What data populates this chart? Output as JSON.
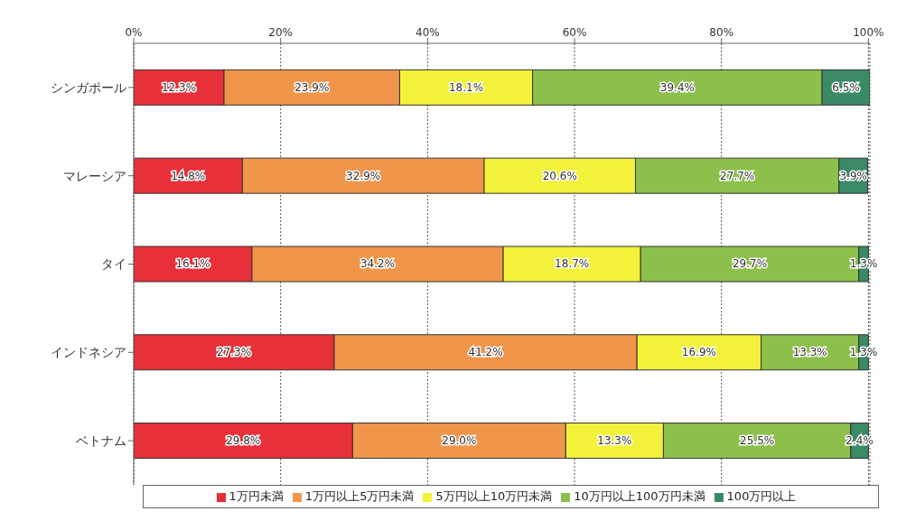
{
  "chart_data": {
    "type": "bar",
    "orientation": "horizontal",
    "stacked": true,
    "categories": [
      "シンガポール",
      "マレーシア",
      "タイ",
      "インドネシア",
      "ベトナム"
    ],
    "series": [
      {
        "name": "1万円未満",
        "color": "#e8303a",
        "values": [
          12.3,
          14.8,
          16.1,
          27.3,
          29.8
        ],
        "value_labels": [
          "12.3%",
          "14.8%",
          "16.1%",
          "27.3%",
          "29.8%"
        ]
      },
      {
        "name": "1万円以上5万円未満",
        "color": "#f0964a",
        "values": [
          23.9,
          32.9,
          34.2,
          41.2,
          29.0
        ],
        "value_labels": [
          "23.9%",
          "32.9%",
          "34.2%",
          "41.2%",
          "29.0%"
        ]
      },
      {
        "name": "5万円以上10万円未満",
        "color": "#f2f23a",
        "values": [
          18.1,
          20.6,
          18.7,
          16.9,
          13.3
        ],
        "value_labels": [
          "18.1%",
          "20.6%",
          "18.7%",
          "16.9%",
          "13.3%"
        ]
      },
      {
        "name": "10万円以上100万円未満",
        "color": "#8cc04a",
        "values": [
          39.4,
          27.7,
          29.7,
          13.3,
          25.5
        ],
        "value_labels": [
          "39.4%",
          "27.7%",
          "29.7%",
          "13.3%",
          "25.5%"
        ]
      },
      {
        "name": "100万円以上",
        "color": "#3a8a66",
        "values": [
          6.5,
          3.9,
          1.3,
          1.3,
          2.4
        ],
        "value_labels": [
          "6.5%",
          "3.9%",
          "1.3%",
          "1.3%",
          "2.4%"
        ]
      }
    ],
    "xlim": [
      0,
      100.2
    ],
    "xticks": [
      {
        "value": 0,
        "label": "0%"
      },
      {
        "value": 20,
        "label": "20%"
      },
      {
        "value": 40,
        "label": "40%"
      },
      {
        "value": 60,
        "label": "60%"
      },
      {
        "value": 80,
        "label": "80%"
      },
      {
        "value": 100,
        "label": "100%"
      }
    ],
    "grid": "x",
    "legend": "bottom"
  }
}
